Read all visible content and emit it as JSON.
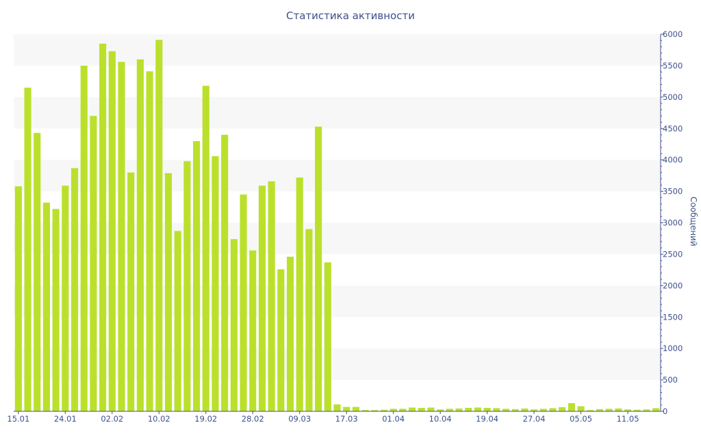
{
  "chart_data": {
    "type": "bar",
    "title": "Статистика активности",
    "ylabel": "Сообщений",
    "xlabel": "",
    "ylim": [
      0,
      6000
    ],
    "ytick_step": 500,
    "y_axis_side": "right",
    "grid": "alternating-bands",
    "bar_color": "#bbe02c",
    "band_color": "#f7f7f7",
    "axis_color": "#3d4f8a",
    "x_tick_labels": [
      {
        "index": 0,
        "label": "15.01"
      },
      {
        "index": 5,
        "label": "24.01"
      },
      {
        "index": 10,
        "label": "02.02"
      },
      {
        "index": 15,
        "label": "10.02"
      },
      {
        "index": 20,
        "label": "19.02"
      },
      {
        "index": 25,
        "label": "28.02"
      },
      {
        "index": 30,
        "label": "09.03"
      },
      {
        "index": 35,
        "label": "17.03"
      },
      {
        "index": 40,
        "label": "01.04"
      },
      {
        "index": 45,
        "label": "10.04"
      },
      {
        "index": 50,
        "label": "19.04"
      },
      {
        "index": 55,
        "label": "27.04"
      },
      {
        "index": 60,
        "label": "05.05"
      },
      {
        "index": 65,
        "label": "11.05"
      }
    ],
    "values": [
      3580,
      5150,
      4430,
      3320,
      3220,
      3590,
      3870,
      5500,
      4700,
      5850,
      5730,
      5560,
      3800,
      5600,
      5410,
      5910,
      3790,
      2870,
      3980,
      4300,
      5180,
      4060,
      4400,
      2740,
      3450,
      2560,
      3590,
      3660,
      2260,
      2460,
      3720,
      2900,
      4530,
      2370,
      110,
      70,
      70,
      20,
      20,
      25,
      40,
      40,
      60,
      55,
      60,
      30,
      40,
      45,
      55,
      60,
      55,
      50,
      40,
      35,
      45,
      30,
      40,
      50,
      65,
      130,
      80,
      20,
      35,
      40,
      45,
      30,
      25,
      30,
      50
    ]
  }
}
